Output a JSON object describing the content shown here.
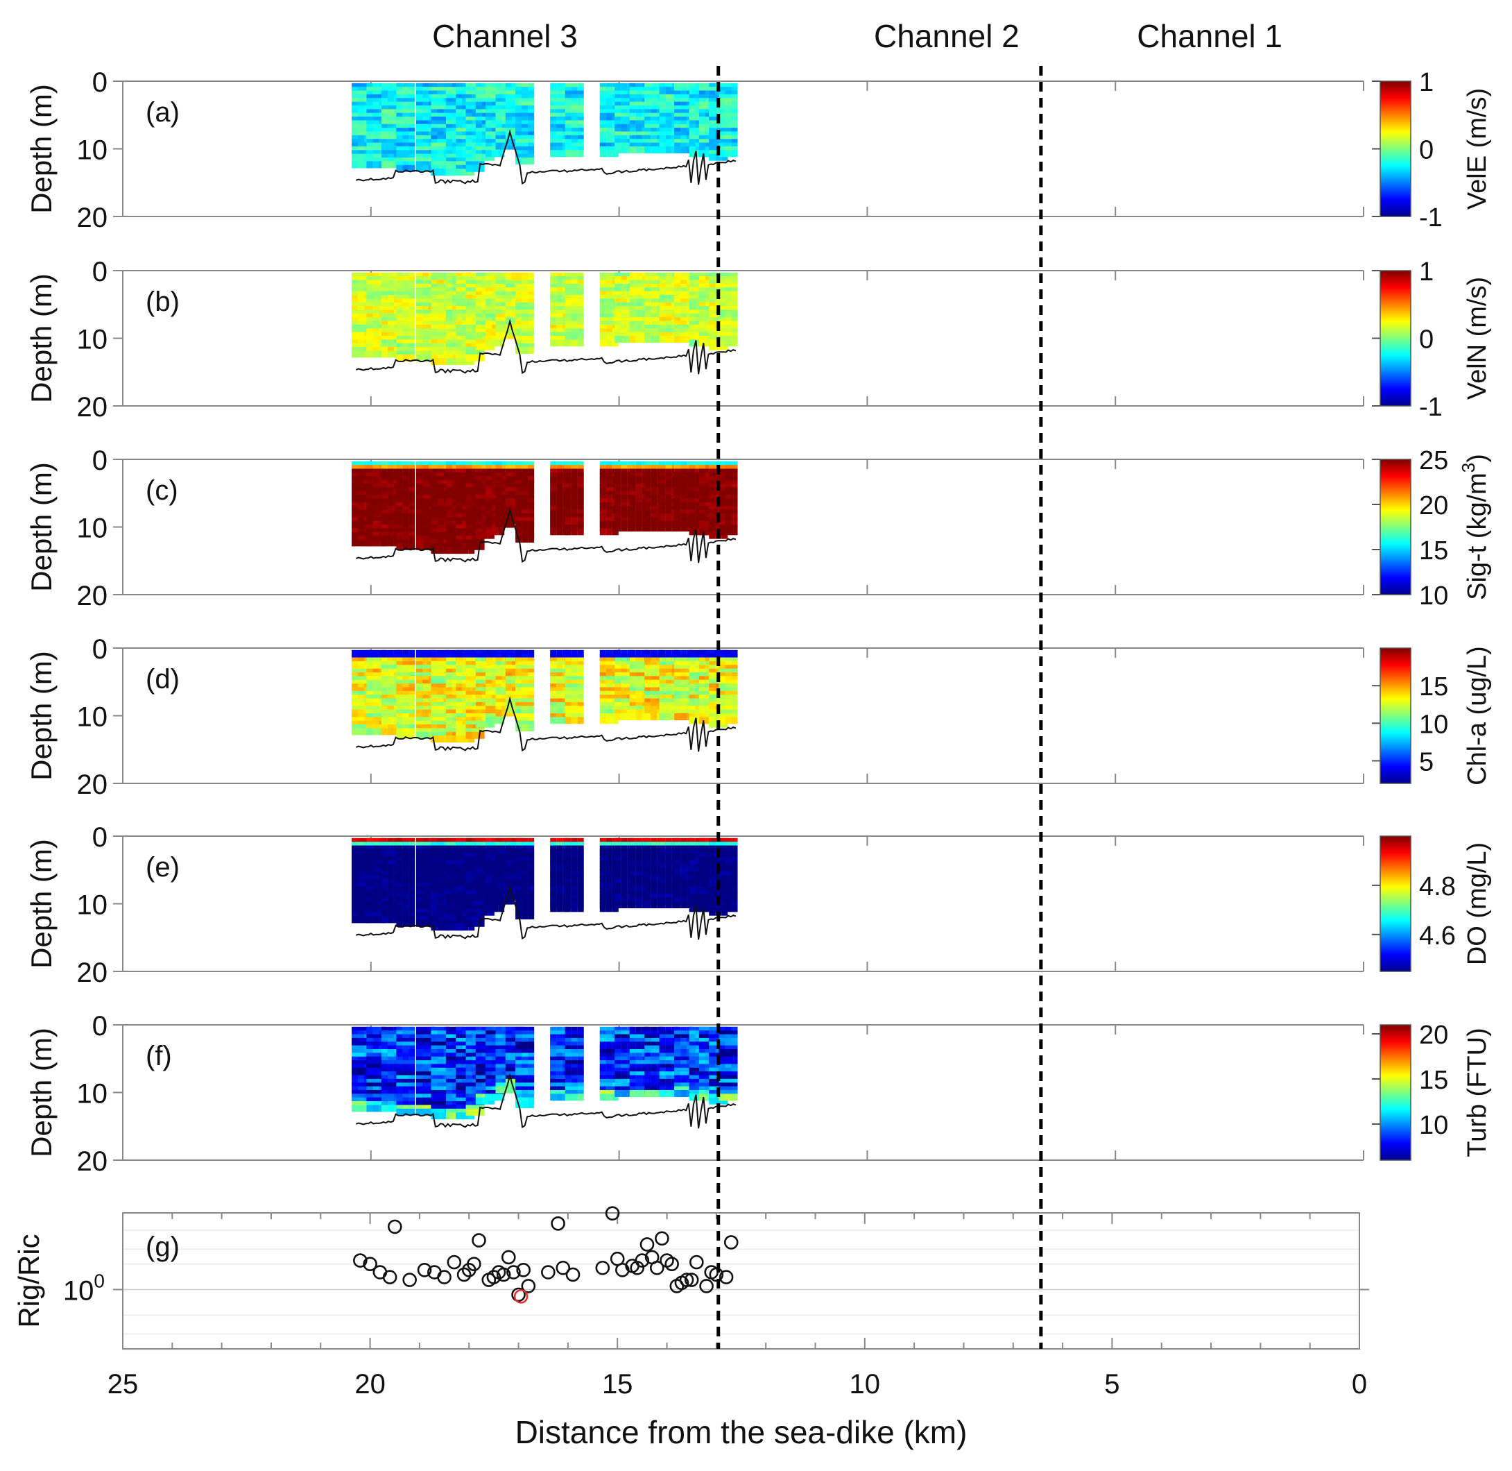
{
  "figure": {
    "channel_labels": [
      {
        "name": "Channel 3",
        "km": 17.3
      },
      {
        "name": "Channel 2",
        "km": 8.4
      },
      {
        "name": "Channel 1",
        "km": 3.1
      }
    ],
    "divider_km": [
      13.0,
      6.5
    ],
    "xlabel": "Distance from the sea-dike (km)"
  },
  "chart_data": [
    {
      "type": "scatter",
      "panel": "(a)",
      "variable": "VelE",
      "colorbar_label": "VelE (m/s)",
      "clim": [
        -1,
        1
      ],
      "colorbar_ticks": [
        "1",
        "0",
        "-1"
      ],
      "colorbar_tick_values": [
        1,
        0,
        -1
      ],
      "ylabel": "Depth (m)",
      "ylim": [
        20,
        0
      ],
      "yticks": [
        0,
        10,
        20
      ],
      "xlim": [
        25,
        0
      ],
      "xticks": [
        25,
        20,
        15,
        10,
        5,
        0
      ],
      "profile_km": [
        20.2,
        19.9,
        19.6,
        19.3,
        18.9,
        18.6,
        18.3,
        18.1,
        17.9,
        17.7,
        17.5,
        17.3,
        17.1,
        16.9,
        16.2,
        15.9,
        15.2,
        14.9,
        14.6,
        14.3,
        14.0,
        13.7,
        13.4,
        13.2,
        13.0,
        12.8
      ],
      "profile_bottom_m": [
        12.5,
        12.8,
        12.9,
        13.1,
        13.4,
        13.6,
        13.7,
        13.6,
        13.2,
        11.5,
        11.2,
        9.6,
        9.2,
        12.0,
        10.8,
        10.9,
        10.8,
        10.7,
        10.7,
        10.5,
        10.6,
        10.4,
        10.9,
        11.0,
        11.3,
        11.0
      ],
      "typical_value_range": [
        -0.45,
        -0.05
      ]
    },
    {
      "type": "scatter",
      "panel": "(b)",
      "variable": "VelN",
      "colorbar_label": "VelN (m/s)",
      "clim": [
        -1,
        1
      ],
      "colorbar_ticks": [
        "1",
        "0",
        "-1"
      ],
      "colorbar_tick_values": [
        1,
        0,
        -1
      ],
      "ylabel": "Depth (m)",
      "ylim": [
        20,
        0
      ],
      "yticks": [
        0,
        10,
        20
      ],
      "typical_value_range": [
        0.0,
        0.3
      ]
    },
    {
      "type": "scatter",
      "panel": "(c)",
      "variable": "Sig-t",
      "colorbar_label": "Sig-t (kg/m",
      "colorbar_label_sup": "3",
      "colorbar_label_tail": ")",
      "clim": [
        10,
        25
      ],
      "colorbar_ticks": [
        "25",
        "20",
        "15",
        "10"
      ],
      "colorbar_tick_values": [
        25,
        20,
        15,
        10
      ],
      "ylabel": "Depth (m)",
      "ylim": [
        20,
        0
      ],
      "yticks": [
        0,
        10,
        20
      ],
      "typical_value_range": [
        23.5,
        25
      ]
    },
    {
      "type": "scatter",
      "panel": "(d)",
      "variable": "Chl-a",
      "colorbar_label": "Chl-a (ug/L)",
      "clim": [
        2,
        20
      ],
      "colorbar_ticks": [
        "15",
        "10",
        "5"
      ],
      "colorbar_tick_values": [
        15,
        10,
        5
      ],
      "ylabel": "Depth (m)",
      "ylim": [
        20,
        0
      ],
      "yticks": [
        0,
        10,
        20
      ],
      "typical_value_range": [
        9,
        15
      ]
    },
    {
      "type": "scatter",
      "panel": "(e)",
      "variable": "DO",
      "colorbar_label": "DO (mg/L)",
      "clim": [
        4.45,
        5.0
      ],
      "colorbar_ticks": [
        "4.8",
        "4.6"
      ],
      "colorbar_tick_values": [
        4.8,
        4.6
      ],
      "ylabel": "Depth (m)",
      "ylim": [
        20,
        0
      ],
      "yticks": [
        0,
        10,
        20
      ],
      "typical_value_range": [
        4.45,
        4.5
      ]
    },
    {
      "type": "scatter",
      "panel": "(f)",
      "variable": "Turb",
      "colorbar_label": "Turb (FTU)",
      "clim": [
        6,
        21
      ],
      "colorbar_ticks": [
        "20",
        "15",
        "10"
      ],
      "colorbar_tick_values": [
        20,
        15,
        10
      ],
      "ylabel": "Depth (m)",
      "ylim": [
        20,
        0
      ],
      "yticks": [
        0,
        10,
        20
      ],
      "typical_value_range": [
        6,
        11
      ]
    },
    {
      "type": "scatter",
      "panel": "(g)",
      "ylabel": "Rig/Ric",
      "yscale": "log",
      "ylim": [
        0.2,
        8
      ],
      "ytick_label": "10",
      "ytick_label_sup": "0",
      "ytick_value": 1,
      "xlabel": "Distance from the sea-dike (km)",
      "xlim": [
        25,
        0
      ],
      "xticks": [
        25,
        20,
        15,
        10,
        5,
        0
      ],
      "xticklabels": [
        "25",
        "20",
        "15",
        "10",
        "5",
        "0"
      ],
      "points_km": [
        20.2,
        20.0,
        19.8,
        19.6,
        19.5,
        19.2,
        18.9,
        18.7,
        18.5,
        18.3,
        18.1,
        18.0,
        17.9,
        17.8,
        17.6,
        17.5,
        17.4,
        17.3,
        17.2,
        17.1,
        17.0,
        16.9,
        16.8,
        16.4,
        16.2,
        16.1,
        15.9,
        15.3,
        15.1,
        15.0,
        14.9,
        14.7,
        14.6,
        14.5,
        14.4,
        14.3,
        14.2,
        14.1,
        14.0,
        13.9,
        13.8,
        13.7,
        13.6,
        13.5,
        13.4,
        13.2,
        13.1,
        13.0,
        12.8,
        12.7
      ],
      "points_value": [
        2.2,
        2.0,
        1.6,
        1.4,
        5.5,
        1.3,
        1.7,
        1.6,
        1.4,
        2.1,
        1.5,
        1.7,
        2.0,
        3.8,
        1.3,
        1.4,
        1.6,
        1.5,
        2.4,
        1.6,
        0.87,
        1.7,
        1.1,
        1.6,
        6.0,
        1.8,
        1.5,
        1.8,
        7.9,
        2.3,
        1.7,
        1.9,
        1.8,
        2.2,
        3.4,
        2.4,
        1.8,
        4.0,
        2.2,
        2.0,
        1.1,
        1.2,
        1.3,
        1.3,
        2.1,
        1.1,
        1.6,
        1.5,
        1.4,
        3.6
      ],
      "highlight_km": 16.95,
      "highlight_value": 0.83,
      "marker_color": "#111111",
      "highlight_color": "#e8302a"
    }
  ]
}
